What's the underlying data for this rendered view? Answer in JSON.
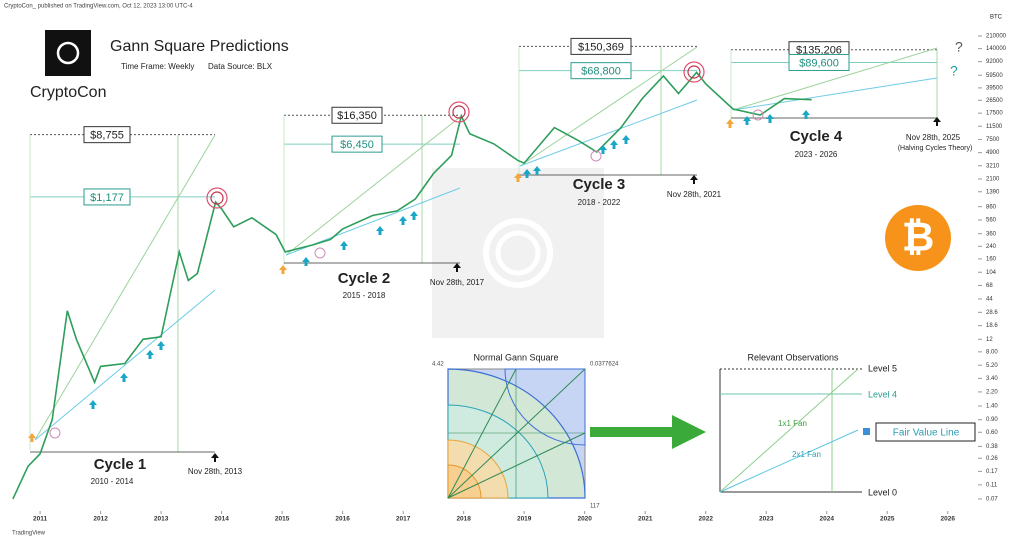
{
  "header": {
    "byline": "CryptoCon_ published on TradingView.com, Oct 12, 2023 13:00 UTC-4",
    "brand": "CryptoCon",
    "footer": "TradingView",
    "timeframe": "Time Frame: Weekly",
    "source": "Data Source: BLX"
  },
  "chart_data": {
    "type": "line",
    "title": "Gann Square Predictions",
    "y_axis_label": "BTC",
    "log_scale": true,
    "grid": false,
    "xlim": [
      2010.42,
      2026.45
    ],
    "xticks": [
      2011,
      2012,
      2013,
      2014,
      2015,
      2016,
      2017,
      2018,
      2019,
      2020,
      2021,
      2022,
      2023,
      2024,
      2025,
      2026
    ],
    "ylim": [
      0.049,
      352000
    ],
    "yticks": [
      210000,
      140000,
      92000,
      59500,
      39500,
      26500,
      17500,
      11500,
      7500,
      4900,
      3210,
      2100,
      1390,
      860,
      560,
      360,
      240,
      160,
      104,
      68,
      44,
      28.6,
      18.6,
      12,
      {
        "value": 8,
        "label": "8.00"
      },
      {
        "value": 5.2,
        "label": "5.20"
      },
      {
        "value": 3.4,
        "label": "3.40"
      },
      {
        "value": 2.2,
        "label": "2.20"
      },
      {
        "value": 1.4,
        "label": "1.40"
      },
      {
        "value": 0.9,
        "label": "0.90"
      },
      {
        "value": 0.6,
        "label": "0.60"
      },
      0.38,
      0.26,
      0.17,
      0.11,
      0.07
    ],
    "x": [
      2010.55,
      2010.8,
      2011.0,
      2011.2,
      2011.45,
      2011.6,
      2011.9,
      2012.0,
      2012.4,
      2012.7,
      2013.0,
      2013.3,
      2013.45,
      2013.6,
      2013.9,
      2014.0,
      2014.2,
      2014.5,
      2014.9,
      2015.05,
      2015.5,
      2015.8,
      2016.0,
      2016.5,
      2016.9,
      2017.2,
      2017.5,
      2017.8,
      2017.96,
      2018.1,
      2018.5,
      2018.9,
      2019.0,
      2019.5,
      2019.9,
      2020.2,
      2020.6,
      2020.95,
      2021.3,
      2021.55,
      2021.85,
      2022.0,
      2022.45,
      2022.9,
      2023.3,
      2023.75
    ],
    "series": [
      {
        "name": "BTC",
        "color": "#2e9e5b",
        "values": [
          0.07,
          0.2,
          0.3,
          0.9,
          30,
          12,
          3,
          5,
          5.5,
          12,
          13,
          200,
          80,
          100,
          1000,
          800,
          450,
          600,
          350,
          200,
          250,
          300,
          420,
          650,
          750,
          1100,
          2500,
          4500,
          16000,
          9000,
          6500,
          3800,
          3500,
          11000,
          7200,
          5000,
          11000,
          28000,
          58000,
          33000,
          65000,
          45000,
          20000,
          16500,
          28000,
          27000
        ]
      }
    ]
  },
  "annotations": {
    "cycles": [
      {
        "name": "Cycle 1",
        "years": "2010 - 2014",
        "top": {
          "value": 8755,
          "label": "$8,755"
        },
        "mid": {
          "value": 1177,
          "label": "$1,177"
        },
        "date": "Nov 28th, 2013"
      },
      {
        "name": "Cycle 2",
        "years": "2015 - 2018",
        "top": {
          "value": 16350,
          "label": "$16,350"
        },
        "mid": {
          "value": 6450,
          "label": "$6,450"
        },
        "date": "Nov 28th, 2017"
      },
      {
        "name": "Cycle 3",
        "years": "2018 - 2022",
        "top": {
          "value": 150369,
          "label": "$150,369"
        },
        "mid": {
          "value": 68800,
          "label": "$68,800"
        },
        "date": "Nov 28th, 2021"
      },
      {
        "name": "Cycle 4",
        "years": "2023 - 2026",
        "top": {
          "value": 135206,
          "label": "$135,206"
        },
        "mid": {
          "value": 89600,
          "label": "$89,600"
        },
        "date": "Nov 28th, 2025"
      }
    ],
    "theory": "(Halving Cycles Theory)",
    "question_top": "?",
    "question_mid": "?"
  },
  "insets": {
    "gann": {
      "title": "Normal Gann Square",
      "top_left": 4.42,
      "top_right": 0.0377624,
      "bottom_right": 117
    },
    "observations": {
      "title": "Relevant Observations",
      "level5": "Level 5",
      "level4": "Level 4",
      "fan1": "1x1 Fan",
      "fan2": "2x1 Fan",
      "fair": "Fair Value Line",
      "level0": "Level 0"
    }
  }
}
